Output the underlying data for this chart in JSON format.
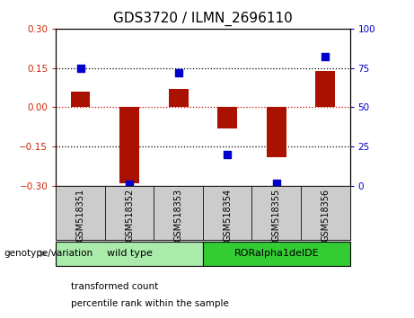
{
  "title": "GDS3720 / ILMN_2696110",
  "samples": [
    "GSM518351",
    "GSM518352",
    "GSM518353",
    "GSM518354",
    "GSM518355",
    "GSM518356"
  ],
  "transformed_count": [
    0.06,
    -0.29,
    0.07,
    -0.08,
    -0.19,
    0.14
  ],
  "percentile_rank": [
    75,
    1,
    72,
    20,
    2,
    82
  ],
  "bar_color": "#aa1100",
  "dot_color": "#0000cc",
  "ylim_left": [
    -0.3,
    0.3
  ],
  "ylim_right": [
    0,
    100
  ],
  "yticks_left": [
    -0.3,
    -0.15,
    0,
    0.15,
    0.3
  ],
  "yticks_right": [
    0,
    25,
    50,
    75,
    100
  ],
  "genotype_groups": [
    {
      "label": "wild type",
      "start": 0,
      "end": 3,
      "color": "#aaeaaa"
    },
    {
      "label": "RORalpha1delDE",
      "start": 3,
      "end": 6,
      "color": "#33cc33"
    }
  ],
  "xlabel_left": "genotype/variation",
  "legend_items": [
    {
      "label": "transformed count",
      "color": "#aa1100"
    },
    {
      "label": "percentile rank within the sample",
      "color": "#0000cc"
    }
  ],
  "bar_width": 0.4,
  "dot_size": 35,
  "background_color": "#ffffff",
  "tick_color_left": "#cc2200",
  "tick_color_right": "#0000cc",
  "title_fontsize": 11,
  "tick_fontsize": 7.5,
  "sample_box_color": "#cccccc",
  "sample_text_fontsize": 7
}
